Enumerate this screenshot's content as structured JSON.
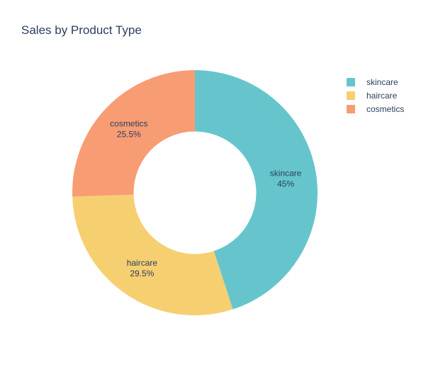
{
  "chart_data": {
    "type": "pie",
    "hole": 0.5,
    "title": "Sales by Product Type",
    "slices": [
      {
        "label": "skincare",
        "value": 45,
        "text": "45%",
        "color": "#66c5cc"
      },
      {
        "label": "haircare",
        "value": 29.5,
        "text": "29.5%",
        "color": "#f6cf71"
      },
      {
        "label": "cosmetics",
        "value": 25.5,
        "text": "25.5%",
        "color": "#f89c74"
      }
    ],
    "legend_position": "top-right"
  }
}
